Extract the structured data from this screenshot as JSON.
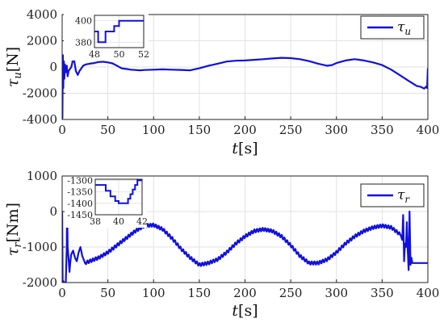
{
  "chart_data": [
    {
      "type": "line",
      "ylabel_symbol": "τ",
      "ylabel_sub": "u",
      "ylabel_unit": "[N]",
      "xlabel_symbol": "t",
      "xlabel_unit": "[s]",
      "xlim": [
        0,
        400
      ],
      "ylim": [
        -4000,
        4000
      ],
      "xticks": [
        "0",
        "50",
        "100",
        "150",
        "200",
        "250",
        "300",
        "350",
        "400"
      ],
      "yticks": [
        "-4000",
        "-2000",
        "0",
        "2000",
        "4000"
      ],
      "grid": true,
      "legend_position": "top-right",
      "color": "#1010e0",
      "series": [
        {
          "name_symbol": "τ",
          "name_sub": "u",
          "x": [
            0,
            0.3,
            0.8,
            1.2,
            1.8,
            2.4,
            3,
            4,
            5,
            6,
            7,
            8,
            9,
            10,
            11,
            12,
            13,
            14,
            15,
            17,
            19,
            21,
            23,
            26,
            30,
            35,
            40,
            45,
            50,
            55,
            60,
            65,
            70,
            75,
            80,
            85,
            90,
            100,
            110,
            120,
            130,
            140,
            150,
            160,
            170,
            180,
            190,
            200,
            210,
            220,
            230,
            240,
            250,
            260,
            270,
            280,
            290,
            295,
            300,
            310,
            320,
            330,
            340,
            350,
            360,
            370,
            380,
            388,
            392,
            396,
            398,
            399.2,
            400
          ],
          "values": [
            0,
            -3900,
            900,
            -1600,
            600,
            -900,
            200,
            -400,
            100,
            -700,
            -300,
            -200,
            -100,
            0,
            300,
            700,
            600,
            100,
            -300,
            -600,
            -300,
            -100,
            100,
            200,
            250,
            300,
            380,
            400,
            350,
            280,
            100,
            -100,
            -150,
            -200,
            -230,
            -250,
            -230,
            -200,
            -180,
            -200,
            -220,
            -250,
            -100,
            100,
            250,
            420,
            480,
            500,
            550,
            600,
            650,
            700,
            680,
            600,
            450,
            250,
            100,
            150,
            300,
            500,
            600,
            500,
            350,
            150,
            -200,
            -650,
            -1100,
            -1450,
            -1500,
            -1650,
            -1500,
            -1600,
            -100
          ]
        }
      ],
      "inset": {
        "xlim": [
          48,
          52
        ],
        "ylim": [
          375,
          405
        ],
        "xticks": [
          "48",
          "50",
          "52"
        ],
        "yticks": [
          "380",
          "400"
        ],
        "x": [
          48,
          48.3,
          48.3,
          48.9,
          48.9,
          49.6,
          49.6,
          50.0,
          50.0,
          52
        ],
        "values": [
          390,
          390,
          380,
          380,
          390,
          390,
          395,
          395,
          400,
          400
        ]
      }
    },
    {
      "type": "line",
      "ylabel_symbol": "τ",
      "ylabel_sub": "r",
      "ylabel_unit": "[Nm]",
      "xlabel_symbol": "t",
      "xlabel_unit": "[s]",
      "xlim": [
        0,
        400
      ],
      "ylim": [
        -2000,
        1000
      ],
      "xticks": [
        "0",
        "50",
        "100",
        "150",
        "200",
        "250",
        "300",
        "350",
        "400"
      ],
      "yticks": [
        "-2000",
        "-1000",
        "0",
        "1000"
      ],
      "grid": true,
      "legend_position": "top-right",
      "color": "#1010e0",
      "series": [
        {
          "name_symbol": "τ",
          "name_sub": "r",
          "x": [
            0,
            0.5,
            1,
            2,
            4,
            5,
            5.5,
            6,
            7,
            8,
            9,
            10,
            12,
            14,
            16,
            18,
            20,
            22,
            25,
            30,
            35,
            40,
            50,
            60,
            70,
            80,
            90,
            100,
            110,
            120,
            130,
            140,
            150,
            160,
            170,
            180,
            190,
            200,
            210,
            220,
            230,
            240,
            250,
            260,
            270,
            280,
            290,
            300,
            310,
            320,
            330,
            340,
            350,
            360,
            370,
            372,
            373,
            374,
            375,
            376,
            377,
            378,
            379,
            380,
            381,
            382,
            383,
            385,
            390,
            395,
            400
          ],
          "values": [
            0,
            -2000,
            -1950,
            -2000,
            -2000,
            -1000,
            100,
            -1000,
            -1300,
            -1700,
            -1400,
            -1200,
            -1100,
            -1300,
            -1400,
            -1150,
            -1000,
            -1250,
            -1450,
            -1400,
            -1350,
            -1300,
            -1150,
            -950,
            -750,
            -550,
            -400,
            -380,
            -500,
            -750,
            -1050,
            -1300,
            -1500,
            -1450,
            -1350,
            -1150,
            -900,
            -700,
            -550,
            -500,
            -550,
            -700,
            -950,
            -1250,
            -1450,
            -1450,
            -1350,
            -1150,
            -900,
            -700,
            -550,
            -450,
            -400,
            -450,
            -650,
            -800,
            -100,
            -1400,
            -900,
            -1000,
            -300,
            -1100,
            -1650,
            0,
            -1500,
            -1300,
            -1450,
            -1450,
            -1450,
            -1450,
            -1450
          ],
          "ripple": true
        }
      ],
      "inset": {
        "xlim": [
          38,
          42
        ],
        "ylim": [
          -1450,
          -1295
        ],
        "xticks": [
          "38",
          "40",
          "42"
        ],
        "yticks": [
          "-1300",
          "-1350",
          "-1400",
          "-1450"
        ],
        "x": [
          38,
          38.9,
          38.9,
          39.3,
          39.3,
          39.7,
          39.7,
          40.0,
          40.0,
          40.8,
          40.8,
          41.0,
          41.0,
          41.2,
          41.2,
          41.4,
          41.4,
          41.6,
          41.6,
          42
        ],
        "values": [
          -1320,
          -1320,
          -1345,
          -1345,
          -1370,
          -1370,
          -1390,
          -1390,
          -1400,
          -1400,
          -1380,
          -1380,
          -1360,
          -1360,
          -1340,
          -1340,
          -1320,
          -1320,
          -1300,
          -1300
        ]
      }
    }
  ]
}
